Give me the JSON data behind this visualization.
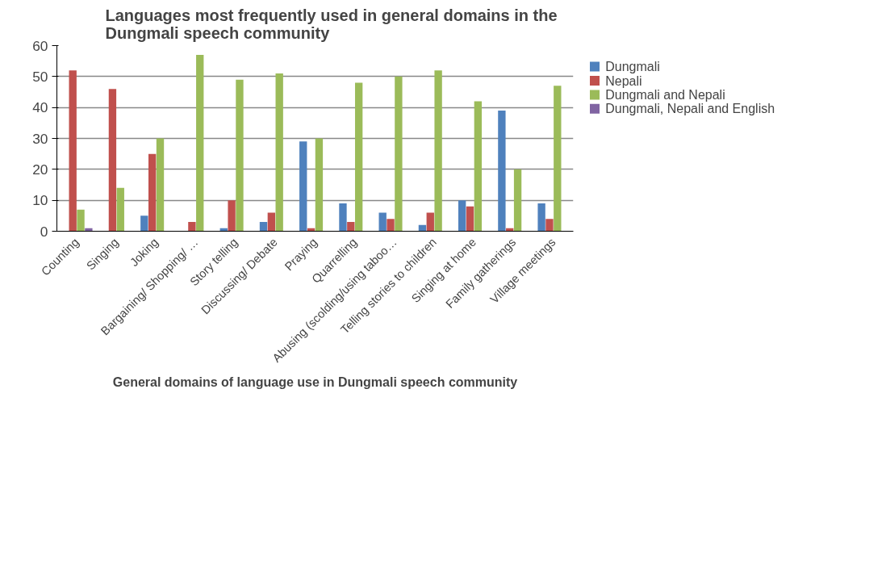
{
  "chart_data": {
    "type": "bar",
    "title": "Languages most frequently used in general domains in the Dungmali speech community",
    "xlabel": "General domains of language use in Dungmali speech community",
    "categories": [
      "Counting",
      "Singing",
      "Joking",
      "Bargaining/ Shopping/ …",
      "Story telling",
      "Discussing/ Debate",
      "Praying",
      "Quarrelling",
      "Abusing (scolding/using taboo…",
      "Telling stories to children",
      "Singing at home",
      "Family gatherings",
      "Village meetings"
    ],
    "series": [
      {
        "name": "Dungmali",
        "color": "#4f81bd",
        "values": [
          0,
          0,
          5,
          0,
          1,
          3,
          29,
          9,
          6,
          2,
          10,
          39,
          9
        ]
      },
      {
        "name": "Nepali",
        "color": "#c0504d",
        "values": [
          52,
          46,
          25,
          3,
          10,
          6,
          1,
          3,
          4,
          6,
          8,
          1,
          4
        ]
      },
      {
        "name": "Dungmali and Nepali",
        "color": "#9bbb59",
        "values": [
          7,
          14,
          30,
          57,
          49,
          51,
          30,
          48,
          50,
          52,
          42,
          20,
          47
        ]
      },
      {
        "name": "Dungmali, Nepali and English",
        "color": "#8064a2",
        "values": [
          1,
          0,
          0,
          0,
          0,
          0,
          0,
          0,
          0,
          0,
          0,
          0,
          0
        ]
      }
    ],
    "ylim": [
      0,
      60
    ],
    "yticks": [
      0,
      10,
      20,
      30,
      40,
      50,
      60
    ],
    "grid": "y",
    "legend": "right"
  }
}
